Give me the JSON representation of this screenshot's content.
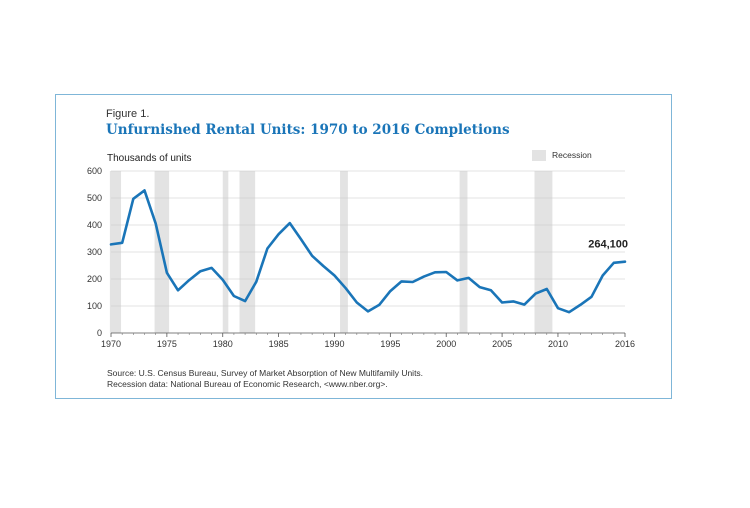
{
  "figure_label": "Figure 1.",
  "chart_data": {
    "type": "line",
    "title": "Unfurnished Rental Units: 1970 to 2016 Completions",
    "ylabel": "Thousands of units",
    "xlabel": "",
    "ylim": [
      0,
      600
    ],
    "xlim": [
      1970,
      2016
    ],
    "yticks": [
      0,
      100,
      200,
      300,
      400,
      500,
      600
    ],
    "xticks": [
      1970,
      1975,
      1980,
      1985,
      1990,
      1995,
      2000,
      2005,
      2010,
      2016
    ],
    "grid": true,
    "legend": {
      "label": "Recession",
      "placement": "top-right"
    },
    "recessions": [
      [
        1969.9,
        1970.9
      ],
      [
        1973.9,
        1975.2
      ],
      [
        1980.0,
        1980.5
      ],
      [
        1981.5,
        1982.9
      ],
      [
        1990.5,
        1991.2
      ],
      [
        2001.2,
        2001.9
      ],
      [
        2007.9,
        2009.5
      ]
    ],
    "series": [
      {
        "color": "#1a75b8",
        "x": [
          1970,
          1971,
          1972,
          1973,
          1974,
          1975,
          1976,
          1977,
          1978,
          1979,
          1980,
          1981,
          1982,
          1983,
          1984,
          1985,
          1986,
          1987,
          1988,
          1989,
          1990,
          1991,
          1992,
          1993,
          1994,
          1995,
          1996,
          1997,
          1998,
          1999,
          2000,
          2001,
          2002,
          2003,
          2004,
          2005,
          2006,
          2007,
          2008,
          2009,
          2010,
          2011,
          2012,
          2013,
          2014,
          2015,
          2016
        ],
        "y": [
          328,
          334,
          497,
          528,
          405,
          223,
          158,
          196,
          229,
          241,
          197,
          137,
          118,
          190,
          313,
          366,
          407,
          347,
          286,
          248,
          213,
          166,
          113,
          80,
          104,
          155,
          191,
          189,
          209,
          225,
          226,
          195,
          204,
          170,
          158,
          113,
          117,
          105,
          146,
          163,
          92,
          77,
          104,
          134,
          213,
          260,
          264
        ]
      }
    ],
    "annotation": {
      "text": "264,100",
      "x": 2016,
      "y": 264
    }
  },
  "source_line1": "Source: U.S. Census Bureau, Survey of Market Absorption of New Multifamily Units.",
  "source_line2": "Recession data: National Bureau of Economic Research, <www.nber.org>."
}
